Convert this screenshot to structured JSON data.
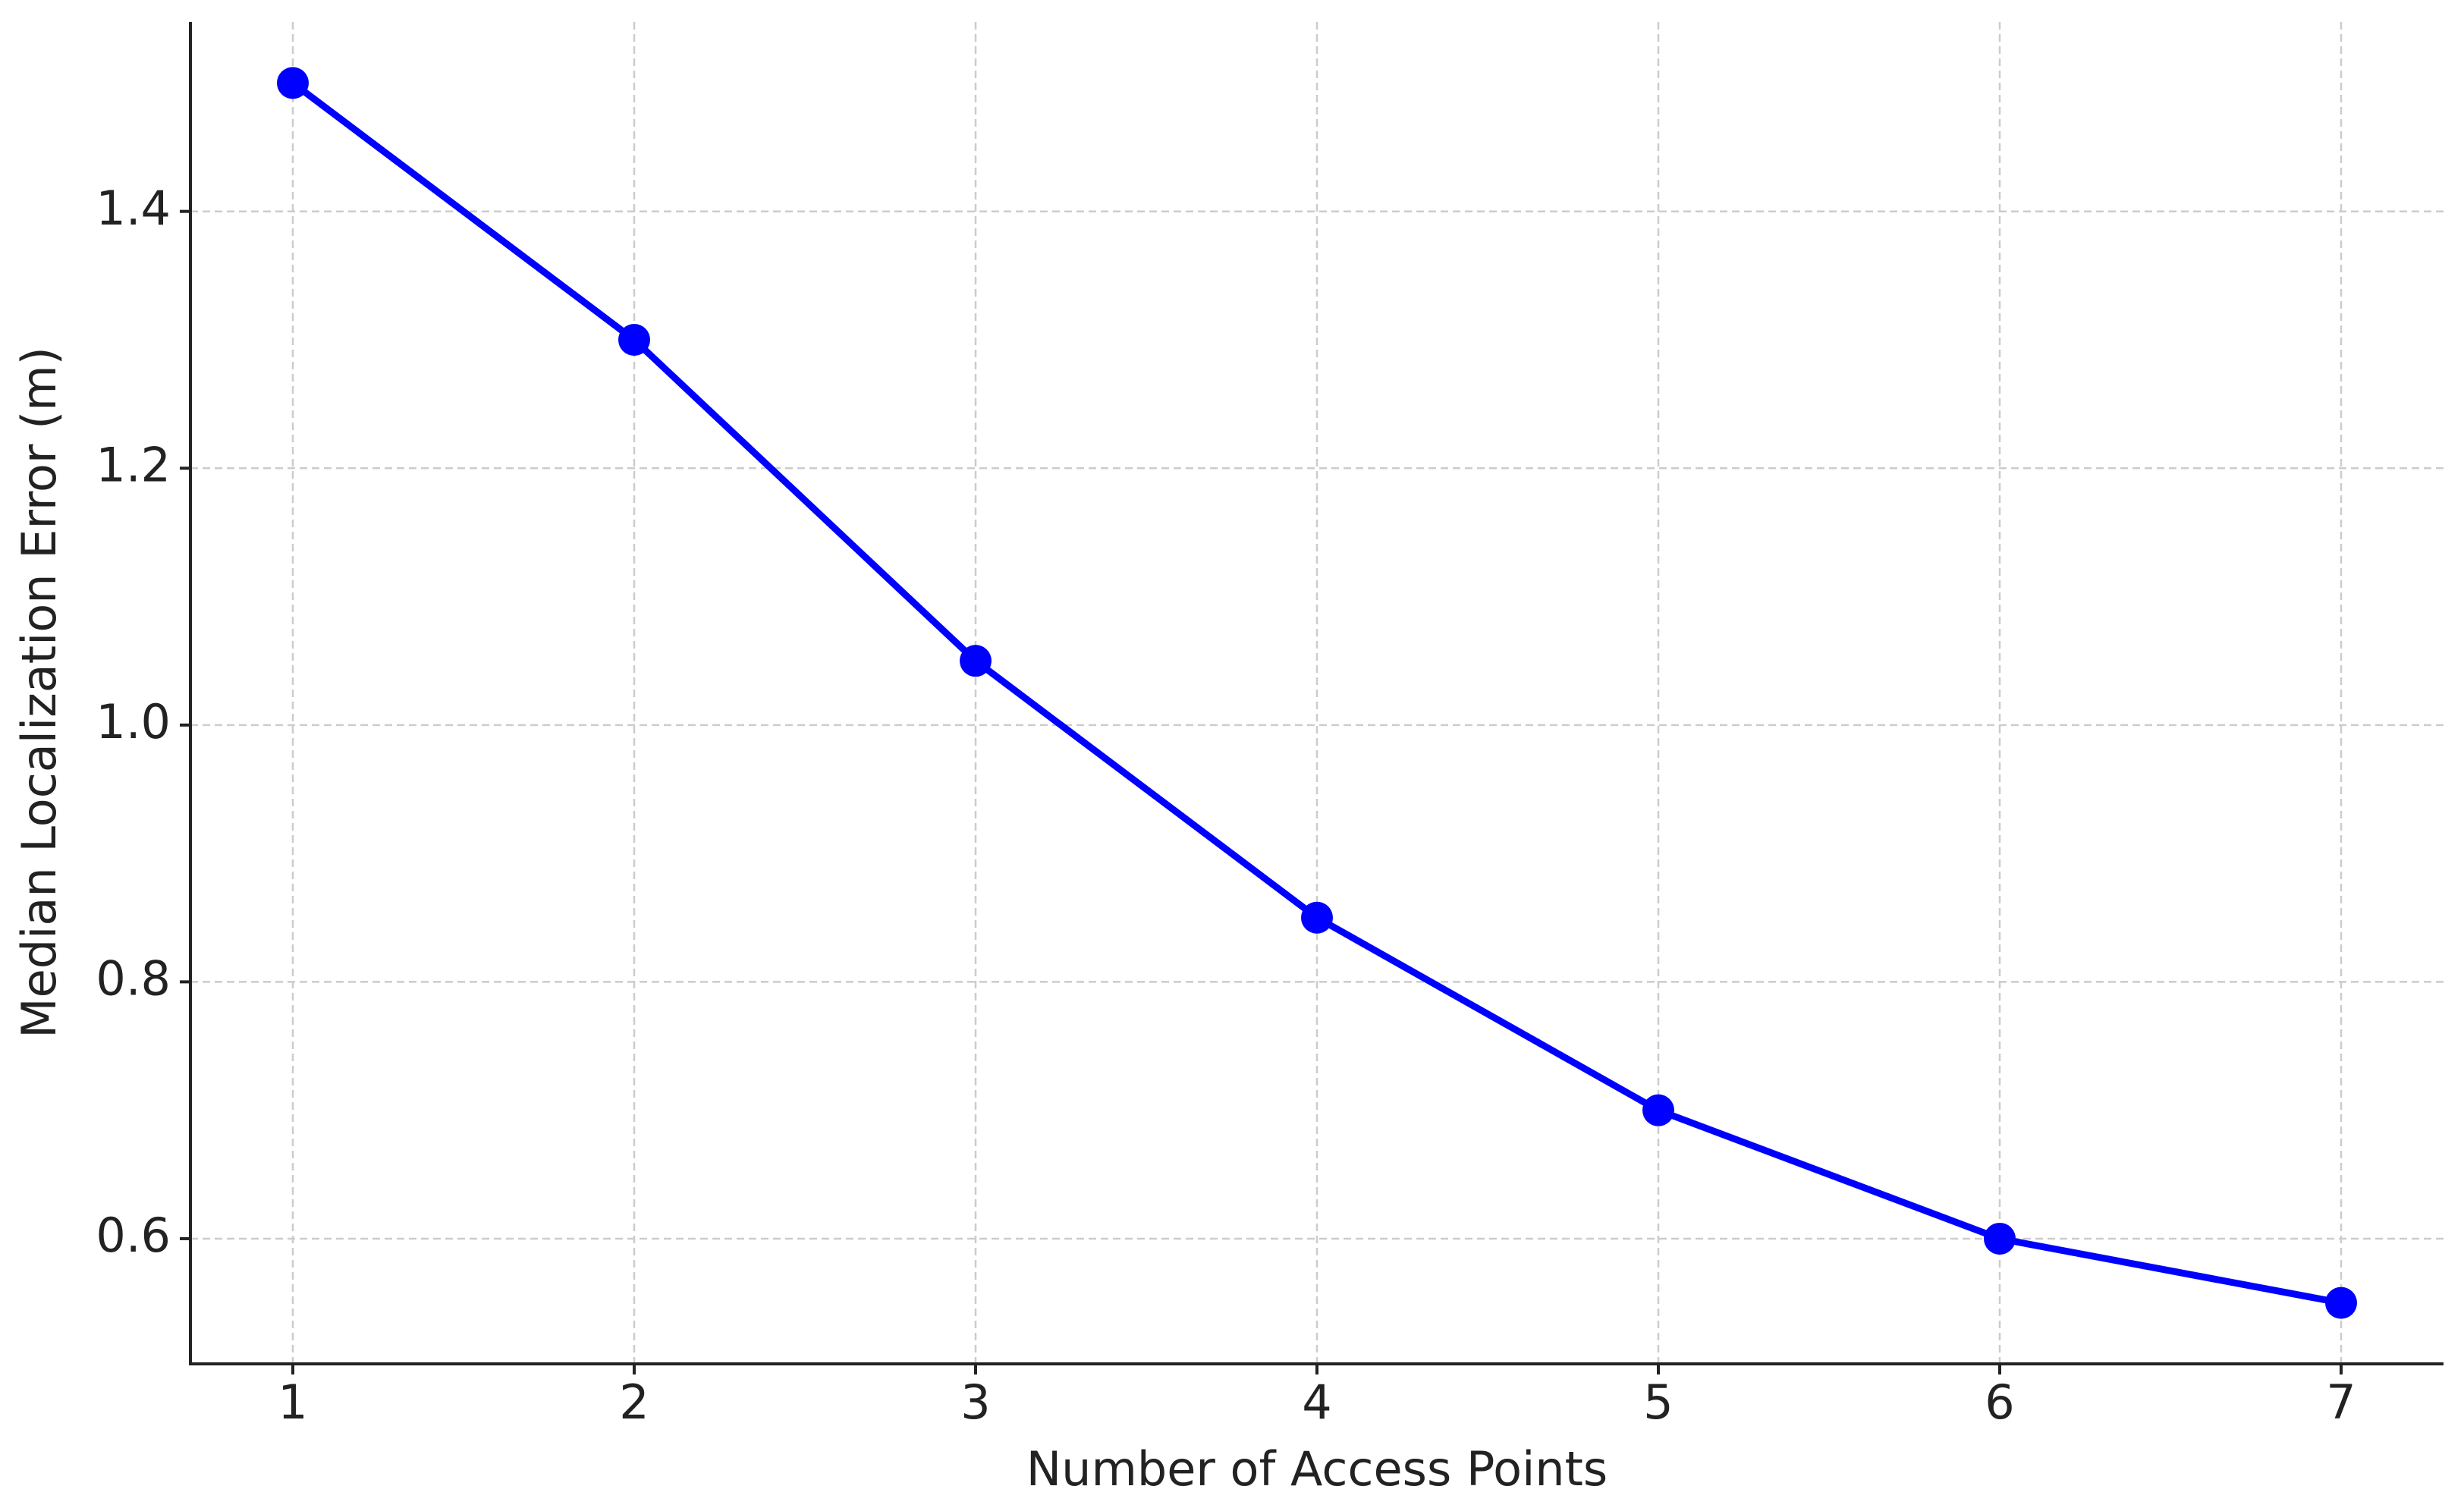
{
  "chart_data": {
    "type": "line",
    "x_label": "Number of Access Points",
    "y_label": "Median Localization Error (m)",
    "x": [
      1,
      2,
      3,
      4,
      5,
      6,
      7
    ],
    "values": [
      1.5,
      1.3,
      1.05,
      0.85,
      0.7,
      0.6,
      0.55
    ],
    "color": "#0000ff",
    "xlim": [
      0.7,
      7.3
    ],
    "xticks": [
      1,
      2,
      3,
      4,
      5,
      6,
      7
    ],
    "ylim": [
      0.5025,
      1.5475
    ],
    "yticks": [
      0.6,
      0.8,
      {
        "value": 1,
        "label": "1.0"
      },
      1.2,
      1.4
    ],
    "grid": true
  }
}
